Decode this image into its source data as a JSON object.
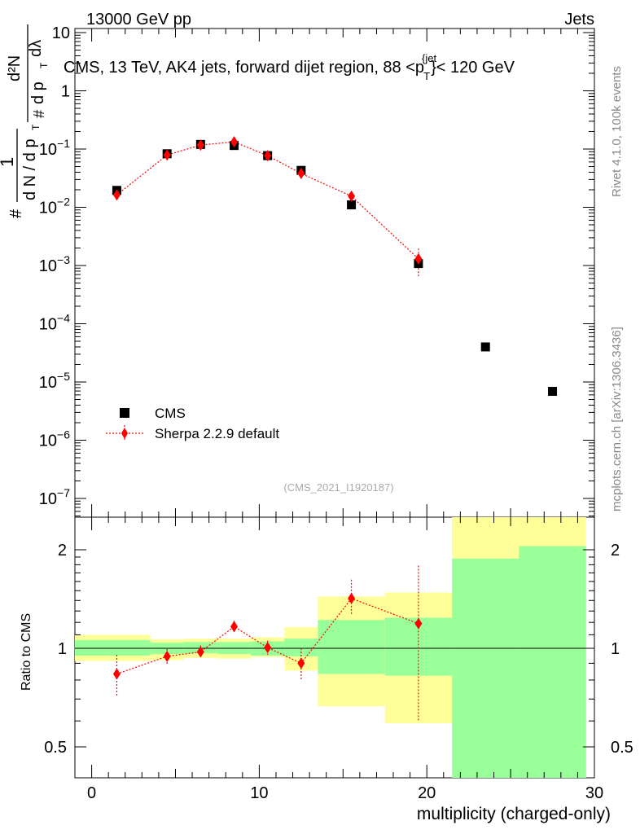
{
  "header": {
    "left": "13000 GeV pp",
    "right": "Jets"
  },
  "title": {
    "main": "CMS, 13 TeV, AK4 jets, forward dijet region, 88 <p",
    "sup": "{jet",
    "sub": "T",
    "tail": "}< 120 GeV"
  },
  "side": {
    "rivet": "Rivet 4.1.0,  100k events",
    "mcplots": "mcplots.cern.ch [arXiv:1306.3436]"
  },
  "analysis_id": "(CMS_2021_I1920187)",
  "y_axis_main": {
    "one": "1",
    "dN_dpT": "d N / d p",
    "T": "T",
    "hash": "#",
    "d2N": "d²N",
    "dpT_dlambda": "d p",
    "dlambda": "dλ"
  },
  "legend": {
    "cms": "CMS",
    "sherpa": "Sherpa 2.2.9 default"
  },
  "colors": {
    "cms": "#000000",
    "sherpa": "#ff0000",
    "band_stat": "#99ff99",
    "band_total": "#ffff99"
  },
  "chart_data": {
    "type": "scatter",
    "xlabel": "multiplicity (charged-only)",
    "xlim": [
      -1,
      30
    ],
    "x_ticks": [
      "0",
      "10",
      "20",
      "30"
    ],
    "main": {
      "yscale": "log",
      "ylim": [
        1.5e-07,
        15
      ],
      "y_ticks": [
        {
          "v": 10,
          "label": "10"
        },
        {
          "v": 1,
          "label": "1"
        },
        {
          "v": 0.1,
          "base": "10",
          "exp": "−1"
        },
        {
          "v": 0.01,
          "base": "10",
          "exp": "−2"
        },
        {
          "v": 0.001,
          "base": "10",
          "exp": "−3"
        },
        {
          "v": 0.0001,
          "base": "10",
          "exp": "−4"
        },
        {
          "v": 1e-05,
          "base": "10",
          "exp": "−5"
        },
        {
          "v": 1e-06,
          "base": "10",
          "exp": "−6"
        },
        {
          "v": 1e-07,
          "base": "10",
          "exp": "−7"
        }
      ],
      "series": [
        {
          "name": "CMS",
          "x": [
            1.5,
            4.5,
            6.5,
            8.5,
            10.5,
            12.5,
            15.5,
            19.5,
            23.5,
            27.5
          ],
          "y": [
            0.0195,
            0.083,
            0.12,
            0.115,
            0.077,
            0.043,
            0.011,
            0.00108,
            4e-05,
            6.9e-06
          ]
        },
        {
          "name": "Sherpa 2.2.9 default",
          "x": [
            1.5,
            4.5,
            6.5,
            8.5,
            10.5,
            12.5,
            15.5,
            19.5
          ],
          "y": [
            0.0163,
            0.079,
            0.117,
            0.133,
            0.077,
            0.038,
            0.0155,
            0.0013
          ],
          "yerr_lo": [
            0.0014,
            0.004,
            0.004,
            0.005,
            0.003,
            0.003,
            0.0012,
            0.00065
          ],
          "yerr_hi": [
            0.0014,
            0.004,
            0.004,
            0.005,
            0.003,
            0.003,
            0.0012,
            0.00065
          ]
        }
      ]
    },
    "ratio": {
      "ylabel": "Ratio to CMS",
      "yscale": "log",
      "ylim": [
        0.35,
        2.5
      ],
      "y_ticks": [
        {
          "v": 0.5,
          "label": "0.5"
        },
        {
          "v": 1,
          "label": "1"
        },
        {
          "v": 2,
          "label": "2"
        }
      ],
      "bands": [
        {
          "x0": -1,
          "x1": 3.5,
          "stat_lo": 0.95,
          "stat_hi": 1.06,
          "tot_lo": 0.915,
          "tot_hi": 1.1
        },
        {
          "x0": 3.5,
          "x1": 5.5,
          "stat_lo": 0.96,
          "stat_hi": 1.04,
          "tot_lo": 0.92,
          "tot_hi": 1.065
        },
        {
          "x0": 5.5,
          "x1": 7.5,
          "stat_lo": 0.965,
          "stat_hi": 1.045,
          "tot_lo": 0.935,
          "tot_hi": 1.07
        },
        {
          "x0": 7.5,
          "x1": 9.5,
          "stat_lo": 0.96,
          "stat_hi": 1.045,
          "tot_lo": 0.93,
          "tot_hi": 1.07
        },
        {
          "x0": 9.5,
          "x1": 11.5,
          "stat_lo": 0.95,
          "stat_hi": 1.05,
          "tot_lo": 0.94,
          "tot_hi": 1.08
        },
        {
          "x0": 11.5,
          "x1": 13.5,
          "stat_lo": 0.945,
          "stat_hi": 1.07,
          "tot_lo": 0.855,
          "tot_hi": 1.16
        },
        {
          "x0": 13.5,
          "x1": 17.5,
          "stat_lo": 0.835,
          "stat_hi": 1.22,
          "tot_lo": 0.665,
          "tot_hi": 1.44
        },
        {
          "x0": 17.5,
          "x1": 21.5,
          "stat_lo": 0.825,
          "stat_hi": 1.24,
          "tot_lo": 0.59,
          "tot_hi": 1.48
        },
        {
          "x0": 21.5,
          "x1": 25.5,
          "stat_lo": 0.3,
          "stat_hi": 1.88,
          "tot_lo": 0.3,
          "tot_hi": 2.6
        },
        {
          "x0": 25.5,
          "x1": 29.5,
          "stat_lo": 0.3,
          "stat_hi": 2.05,
          "tot_lo": 0.3,
          "tot_hi": 2.6
        }
      ],
      "series": [
        {
          "name": "Sherpa 2.2.9 default",
          "x": [
            1.5,
            4.5,
            6.5,
            8.5,
            10.5,
            12.5,
            15.5,
            19.5
          ],
          "y": [
            0.835,
            0.945,
            0.975,
            1.165,
            1.005,
            0.9,
            1.42,
            1.19
          ],
          "yerr_lo": [
            0.12,
            0.05,
            0.045,
            0.05,
            0.05,
            0.1,
            0.16,
            0.59
          ],
          "yerr_hi": [
            0.12,
            0.05,
            0.045,
            0.05,
            0.05,
            0.1,
            0.2,
            0.6
          ]
        }
      ]
    }
  }
}
